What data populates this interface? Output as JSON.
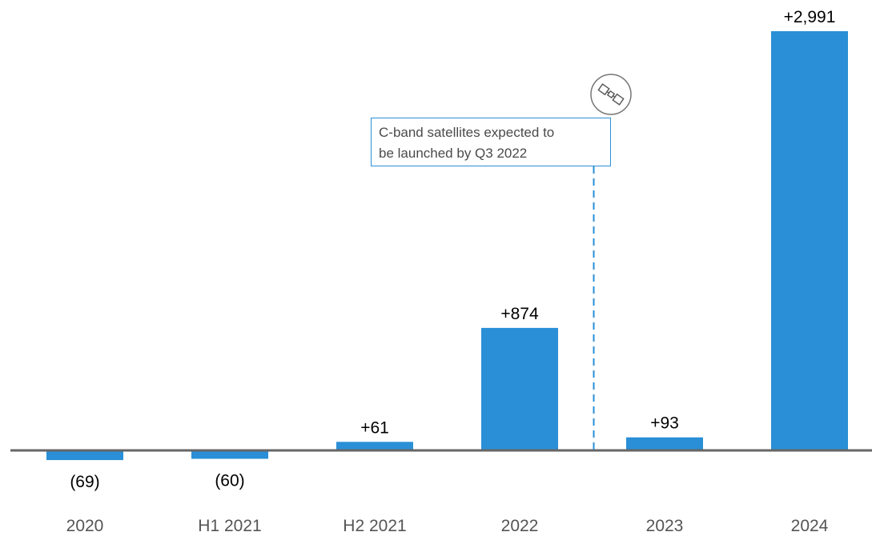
{
  "chart_data": {
    "type": "bar",
    "categories": [
      "2020",
      "H1 2021",
      "H2 2021",
      "2022",
      "2023",
      "2024"
    ],
    "values": [
      -69,
      -60,
      61,
      874,
      93,
      2991
    ],
    "value_labels": [
      "(69)",
      "(60)",
      "+61",
      "+874",
      "+93",
      "+2,991"
    ],
    "title": "",
    "xlabel": "",
    "ylabel": "",
    "ylim": [
      -100,
      3150
    ],
    "grid": false,
    "legend": "none",
    "colors": {
      "bar": "#2a8fd6",
      "axis": "#666666",
      "annotation": "#2a8fd6",
      "label": "#000000",
      "tick": "#555555"
    },
    "annotation": {
      "lines": [
        "C-band satellites expected to",
        "be launched by Q3 2022"
      ],
      "marker_between": [
        "2022",
        "2023"
      ],
      "icon": "satellite-icon"
    }
  }
}
